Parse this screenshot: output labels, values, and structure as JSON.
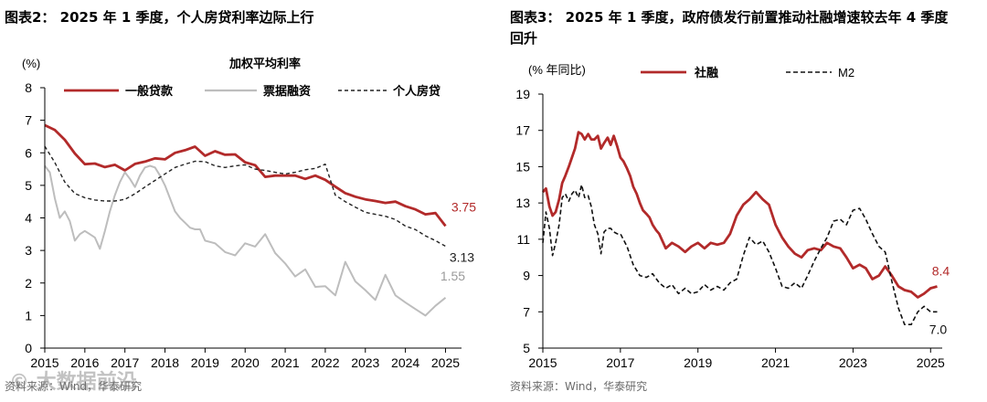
{
  "left_panel": {
    "title": "图表2：  2025 年 1 季度，个人房贷利率边际上行",
    "source": "资料来源：Wind，华泰研究",
    "chart_data": {
      "type": "line",
      "title": "加权平均利率",
      "ylabel_unit": "(%)",
      "ylim": [
        0,
        8
      ],
      "yticks": [
        0,
        1,
        2,
        3,
        4,
        5,
        6,
        7,
        8
      ],
      "xlim": [
        2015,
        2025.4
      ],
      "xticks": [
        2015,
        2016,
        2017,
        2018,
        2019,
        2020,
        2021,
        2022,
        2023,
        2024,
        2025
      ],
      "legend": [
        {
          "name": "一般贷款",
          "color": "#b22a2a",
          "style": "solid"
        },
        {
          "name": "票据融资",
          "color": "#bdbdbd",
          "style": "solid"
        },
        {
          "name": "个人房贷",
          "color": "#222222",
          "style": "dashed"
        }
      ],
      "series": [
        {
          "name": "一般贷款",
          "color": "#b22a2a",
          "x": [
            2015.0,
            2015.25,
            2015.5,
            2015.75,
            2016.0,
            2016.25,
            2016.5,
            2016.75,
            2017.0,
            2017.25,
            2017.5,
            2017.75,
            2018.0,
            2018.25,
            2018.5,
            2018.75,
            2019.0,
            2019.25,
            2019.5,
            2019.75,
            2020.0,
            2020.25,
            2020.5,
            2020.75,
            2021.0,
            2021.25,
            2021.5,
            2021.75,
            2022.0,
            2022.25,
            2022.5,
            2022.75,
            2023.0,
            2023.25,
            2023.5,
            2023.75,
            2024.0,
            2024.25,
            2024.5,
            2024.75,
            2025.0
          ],
          "y": [
            6.85,
            6.7,
            6.4,
            5.98,
            5.65,
            5.67,
            5.56,
            5.63,
            5.46,
            5.66,
            5.73,
            5.83,
            5.8,
            6.0,
            6.08,
            6.19,
            5.91,
            6.05,
            5.94,
            5.95,
            5.71,
            5.62,
            5.26,
            5.3,
            5.3,
            5.3,
            5.2,
            5.3,
            5.17,
            4.96,
            4.76,
            4.65,
            4.57,
            4.52,
            4.46,
            4.5,
            4.36,
            4.26,
            4.11,
            4.15,
            3.75
          ],
          "end_label": "3.75"
        },
        {
          "name": "票据融资",
          "color": "#bdbdbd",
          "x": [
            2015.0,
            2015.125,
            2015.25,
            2015.375,
            2015.5,
            2015.625,
            2015.75,
            2015.875,
            2016.0,
            2016.125,
            2016.25,
            2016.375,
            2016.5,
            2016.625,
            2016.75,
            2016.875,
            2017.0,
            2017.125,
            2017.25,
            2017.375,
            2017.5,
            2017.625,
            2017.75,
            2017.875,
            2018.0,
            2018.125,
            2018.25,
            2018.375,
            2018.5,
            2018.625,
            2018.75,
            2018.875,
            2019.0,
            2019.25,
            2019.5,
            2019.75,
            2020.0,
            2020.25,
            2020.5,
            2020.75,
            2021.0,
            2021.25,
            2021.5,
            2021.75,
            2022.0,
            2022.25,
            2022.5,
            2022.75,
            2023.0,
            2023.25,
            2023.5,
            2023.75,
            2024.0,
            2024.25,
            2024.5,
            2024.75,
            2025.0
          ],
          "y": [
            5.6,
            5.4,
            4.6,
            4.0,
            4.2,
            3.9,
            3.3,
            3.5,
            3.6,
            3.5,
            3.4,
            3.05,
            3.6,
            4.2,
            4.7,
            5.1,
            5.4,
            5.2,
            4.95,
            5.3,
            5.55,
            5.6,
            5.55,
            5.3,
            5.0,
            4.6,
            4.2,
            4.0,
            3.85,
            3.7,
            3.65,
            3.65,
            3.3,
            3.22,
            2.95,
            2.85,
            3.22,
            3.12,
            3.5,
            2.92,
            2.6,
            2.2,
            2.42,
            1.88,
            1.9,
            1.62,
            2.65,
            2.05,
            1.78,
            1.48,
            2.25,
            1.62,
            1.4,
            1.2,
            1.0,
            1.3,
            1.55
          ],
          "end_label": "1.55"
        },
        {
          "name": "个人房贷",
          "color": "#222222",
          "x": [
            2015.0,
            2015.25,
            2015.5,
            2015.75,
            2016.0,
            2016.25,
            2016.5,
            2016.75,
            2017.0,
            2017.25,
            2017.5,
            2017.75,
            2018.0,
            2018.25,
            2018.5,
            2018.75,
            2019.0,
            2019.25,
            2019.5,
            2019.75,
            2020.0,
            2020.25,
            2020.5,
            2020.75,
            2021.0,
            2021.25,
            2021.5,
            2021.75,
            2022.0,
            2022.25,
            2022.5,
            2022.75,
            2023.0,
            2023.25,
            2023.5,
            2023.75,
            2024.0,
            2024.25,
            2024.5,
            2024.75,
            2025.0
          ],
          "y": [
            6.2,
            5.7,
            5.1,
            4.75,
            4.62,
            4.55,
            4.52,
            4.52,
            4.57,
            4.74,
            4.95,
            5.15,
            5.35,
            5.55,
            5.65,
            5.74,
            5.73,
            5.6,
            5.55,
            5.6,
            5.63,
            5.5,
            5.46,
            5.4,
            5.35,
            5.4,
            5.48,
            5.52,
            5.65,
            4.7,
            4.5,
            4.33,
            4.17,
            4.11,
            4.05,
            3.95,
            3.75,
            3.64,
            3.45,
            3.3,
            3.13
          ],
          "end_label": "3.13"
        }
      ]
    }
  },
  "right_panel": {
    "title_line1": "图表3：  2025 年 1 季度，政府债发行前置推动社融增速较去年 4 季度",
    "title_line2": "回升",
    "source": "资料来源：Wind，华泰研究",
    "chart_data": {
      "type": "line",
      "ylabel_unit": "(% 年同比)",
      "ylim": [
        5,
        19
      ],
      "yticks": [
        5,
        7,
        9,
        11,
        13,
        15,
        17,
        19
      ],
      "xlim": [
        2015,
        2025.3
      ],
      "xticks": [
        2015,
        2017,
        2019,
        2021,
        2023,
        2025
      ],
      "legend": [
        {
          "name": "社融",
          "color": "#b22a2a",
          "style": "solid"
        },
        {
          "name": "M2",
          "color": "#111111",
          "style": "dashed"
        }
      ],
      "series": [
        {
          "name": "社融",
          "color": "#b22a2a",
          "x": [
            2015.0,
            2015.08,
            2015.17,
            2015.25,
            2015.33,
            2015.42,
            2015.5,
            2015.58,
            2015.67,
            2015.75,
            2015.83,
            2015.92,
            2016.0,
            2016.08,
            2016.17,
            2016.25,
            2016.33,
            2016.42,
            2016.5,
            2016.58,
            2016.67,
            2016.75,
            2016.83,
            2016.92,
            2017.0,
            2017.08,
            2017.17,
            2017.25,
            2017.33,
            2017.42,
            2017.5,
            2017.58,
            2017.67,
            2017.75,
            2017.83,
            2017.92,
            2018.0,
            2018.17,
            2018.33,
            2018.5,
            2018.67,
            2018.83,
            2019.0,
            2019.17,
            2019.33,
            2019.5,
            2019.67,
            2019.83,
            2020.0,
            2020.17,
            2020.33,
            2020.5,
            2020.67,
            2020.83,
            2021.0,
            2021.17,
            2021.33,
            2021.5,
            2021.67,
            2021.83,
            2022.0,
            2022.17,
            2022.33,
            2022.5,
            2022.67,
            2022.83,
            2023.0,
            2023.17,
            2023.33,
            2023.5,
            2023.67,
            2023.83,
            2024.0,
            2024.17,
            2024.33,
            2024.5,
            2024.67,
            2024.83,
            2025.0,
            2025.17
          ],
          "y": [
            13.6,
            13.8,
            12.8,
            12.3,
            12.5,
            13.2,
            14.1,
            14.5,
            15.0,
            15.5,
            16.0,
            16.9,
            16.8,
            16.5,
            16.8,
            16.5,
            16.5,
            16.7,
            16.0,
            16.3,
            16.6,
            16.2,
            16.7,
            16.1,
            15.5,
            15.3,
            14.9,
            14.5,
            13.9,
            13.5,
            13.0,
            12.6,
            12.4,
            12.2,
            11.8,
            11.5,
            11.3,
            10.5,
            10.8,
            10.6,
            10.3,
            10.6,
            10.8,
            10.5,
            10.8,
            10.7,
            10.8,
            11.3,
            12.3,
            12.9,
            13.2,
            13.6,
            13.2,
            12.9,
            11.8,
            11.1,
            10.6,
            10.2,
            10.0,
            10.4,
            10.5,
            10.4,
            10.8,
            10.6,
            10.5,
            10.0,
            9.4,
            9.6,
            9.4,
            8.8,
            9.0,
            9.5,
            9.0,
            8.4,
            8.2,
            8.1,
            7.8,
            8.0,
            8.3,
            8.4
          ],
          "end_label": "8.4"
        },
        {
          "name": "M2",
          "color": "#111111",
          "x": [
            2015.0,
            2015.08,
            2015.17,
            2015.25,
            2015.33,
            2015.42,
            2015.5,
            2015.58,
            2015.67,
            2015.75,
            2015.83,
            2015.92,
            2016.0,
            2016.08,
            2016.17,
            2016.25,
            2016.33,
            2016.42,
            2016.5,
            2016.58,
            2016.67,
            2016.75,
            2016.83,
            2016.92,
            2017.0,
            2017.17,
            2017.33,
            2017.5,
            2017.67,
            2017.83,
            2018.0,
            2018.17,
            2018.33,
            2018.5,
            2018.67,
            2018.83,
            2019.0,
            2019.17,
            2019.33,
            2019.5,
            2019.67,
            2019.83,
            2020.0,
            2020.17,
            2020.33,
            2020.5,
            2020.67,
            2020.83,
            2021.0,
            2021.17,
            2021.33,
            2021.5,
            2021.67,
            2021.83,
            2022.0,
            2022.17,
            2022.33,
            2022.5,
            2022.67,
            2022.83,
            2023.0,
            2023.17,
            2023.33,
            2023.5,
            2023.67,
            2023.83,
            2024.0,
            2024.17,
            2024.33,
            2024.5,
            2024.67,
            2024.83,
            2025.0,
            2025.17
          ],
          "y": [
            10.8,
            12.5,
            11.6,
            10.1,
            10.8,
            11.8,
            13.3,
            13.5,
            13.1,
            13.5,
            13.7,
            13.3,
            14.0,
            13.3,
            13.4,
            12.8,
            11.8,
            11.3,
            10.2,
            11.4,
            11.6,
            11.6,
            11.4,
            11.3,
            11.3,
            10.6,
            9.6,
            9.0,
            8.9,
            9.1,
            8.6,
            8.3,
            8.5,
            8.0,
            8.3,
            8.0,
            8.1,
            8.5,
            8.2,
            8.4,
            8.2,
            8.6,
            8.8,
            10.1,
            11.1,
            10.7,
            10.9,
            10.3,
            9.4,
            8.4,
            8.3,
            8.6,
            8.3,
            9.0,
            9.8,
            10.5,
            11.1,
            12.0,
            12.1,
            11.8,
            12.6,
            12.7,
            12.1,
            11.3,
            10.6,
            10.3,
            8.7,
            7.2,
            6.3,
            6.3,
            7.0,
            7.3,
            7.0,
            7.0
          ],
          "end_label": "7.0"
        }
      ]
    }
  },
  "watermark": "© 大数据前沿"
}
